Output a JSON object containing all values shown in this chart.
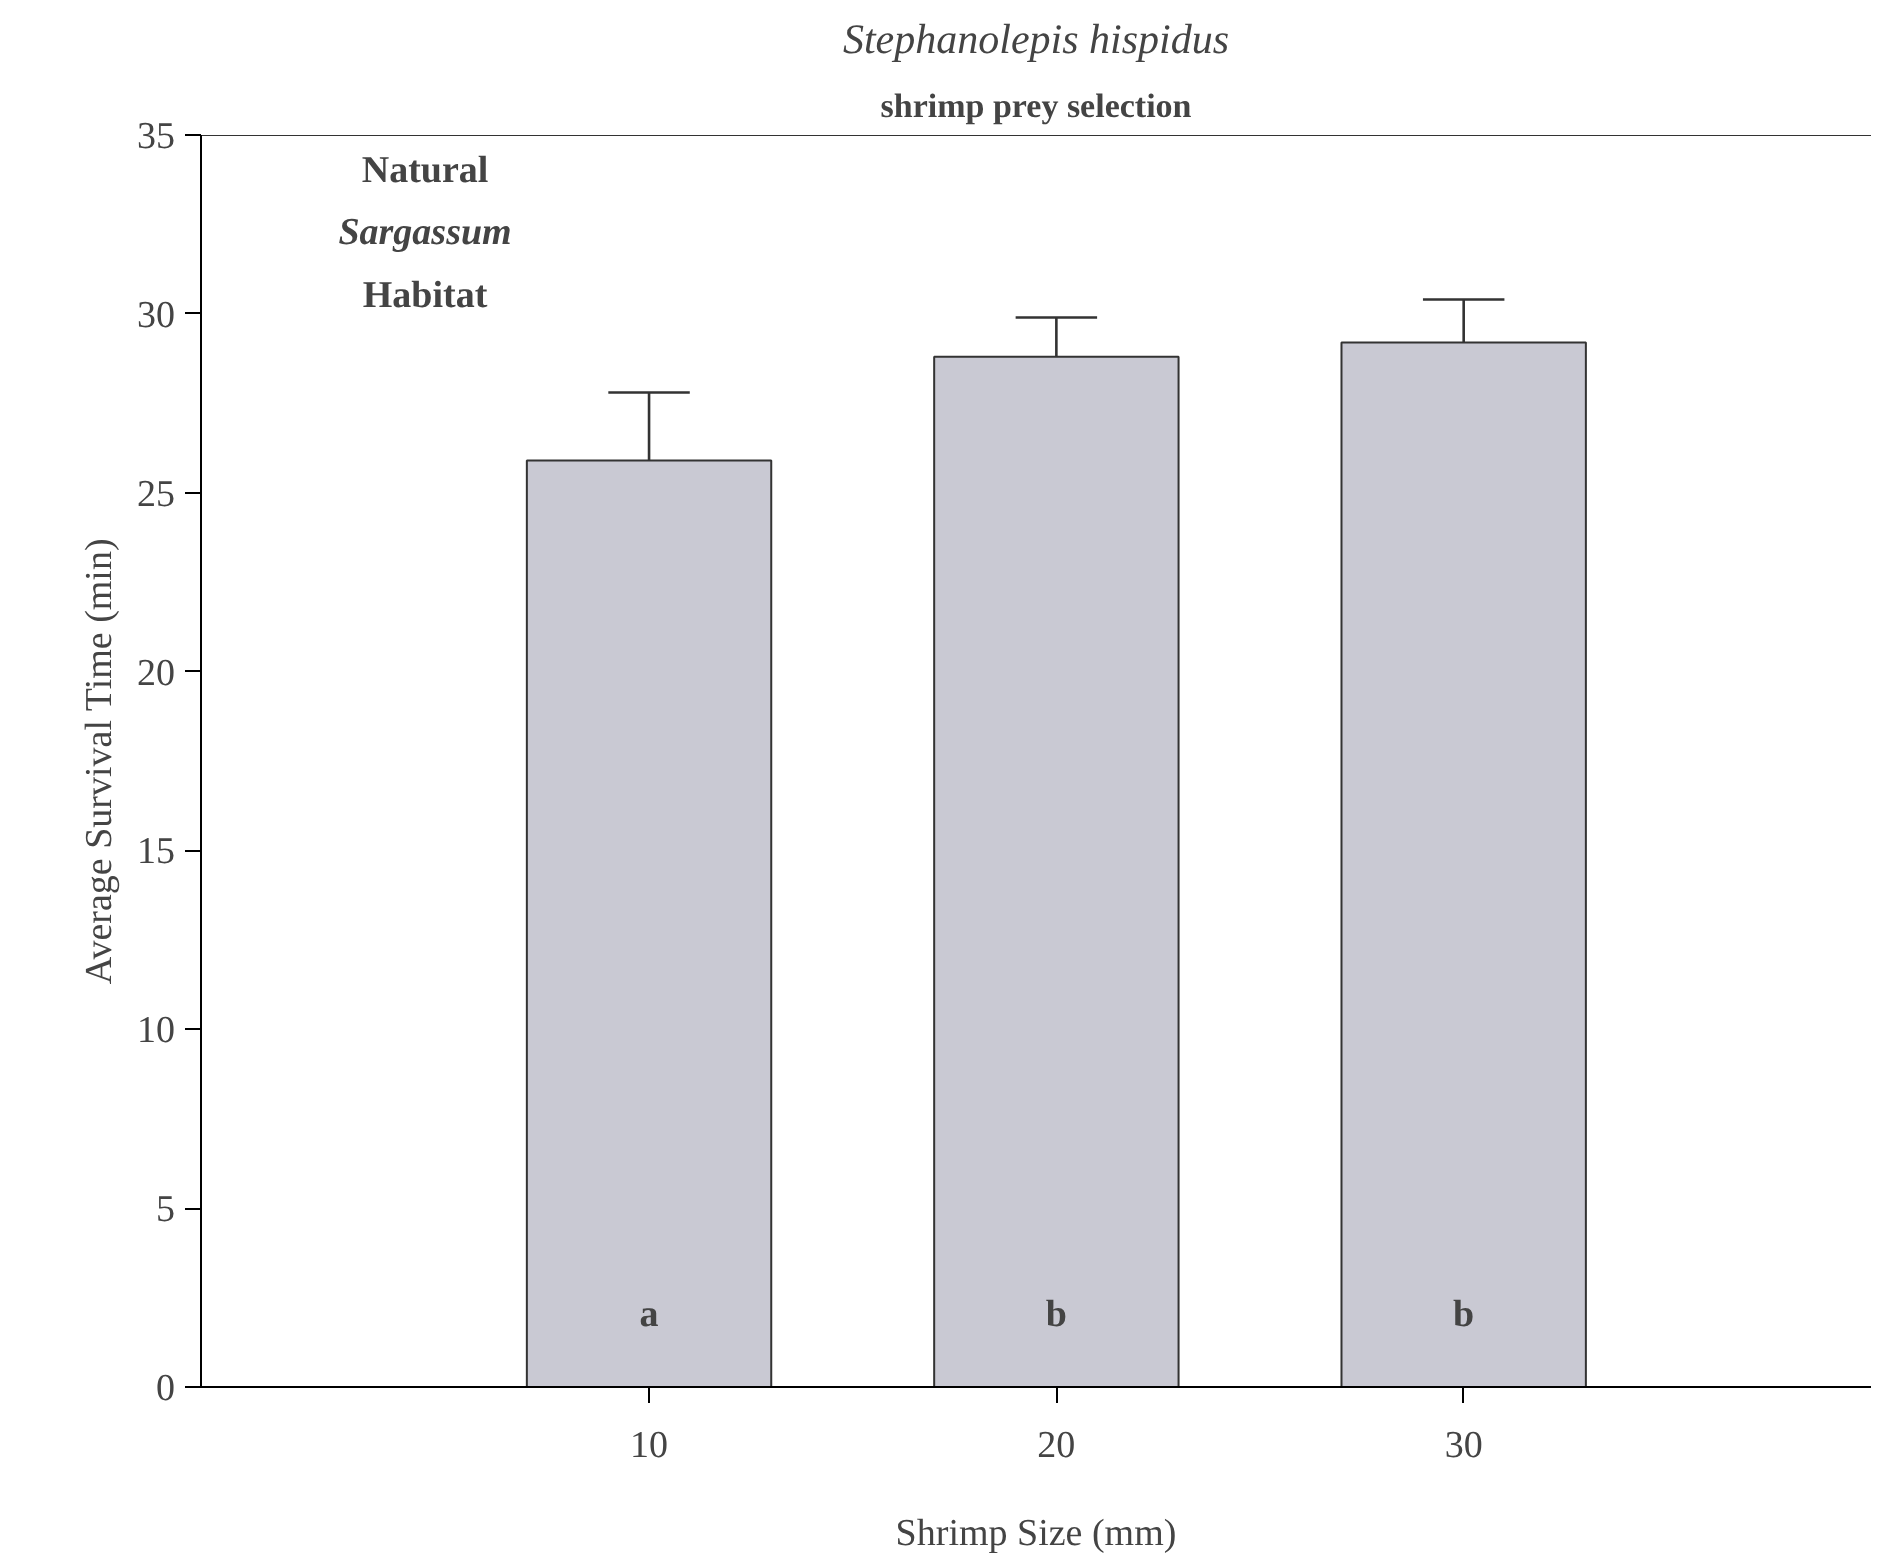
{
  "chart_data": {
    "type": "bar",
    "title": "Stephanolepis hispidus",
    "subtitle": "shrimp prey selection",
    "xlabel": "Shrimp Size (mm)",
    "ylabel": "Average Survival Time (min)",
    "categories": [
      "10",
      "20",
      "30"
    ],
    "values": [
      25.9,
      28.8,
      29.2
    ],
    "color": "#c9c9d3",
    "errors": [
      [
        25.9,
        27.8
      ],
      [
        28.8,
        29.9
      ],
      [
        29.2,
        30.4
      ]
    ],
    "ylim": [
      0,
      35
    ],
    "yticks": [
      0,
      5,
      10,
      15,
      20,
      25,
      30,
      35
    ],
    "grid": false,
    "annotations": [
      "Natural\nSargassum\nHabitat",
      "a",
      "b",
      "b"
    ]
  }
}
